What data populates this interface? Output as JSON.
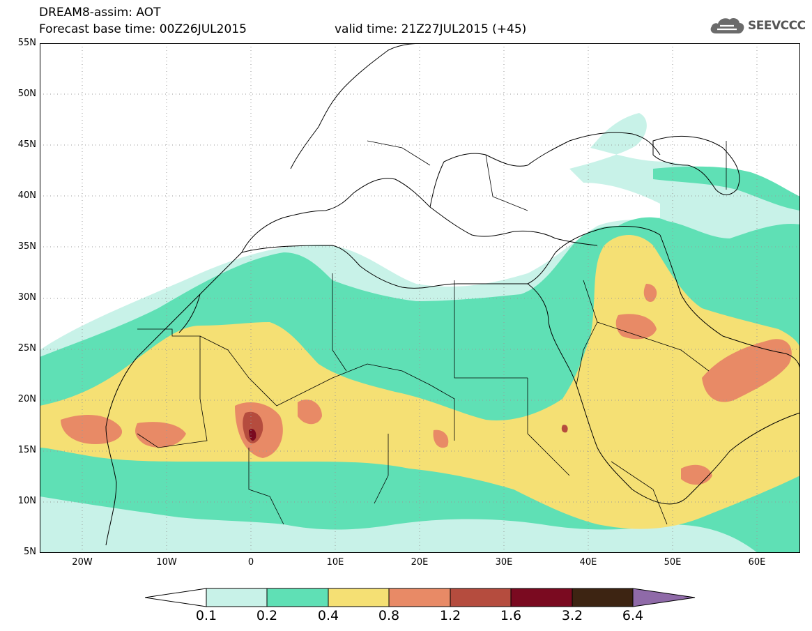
{
  "header": {
    "title": "DREAM8-assim: AOT",
    "base_time": "Forecast base time: 00Z26JUL2015",
    "valid_time": "valid time: 21Z27JUL2015 (+45)",
    "logo_text": "SEEVCCC",
    "logo_icon": "cloud-icon"
  },
  "map": {
    "projection": "lat-lon",
    "lon_range": [
      -25,
      65
    ],
    "lat_range": [
      5,
      55
    ],
    "lat_ticks": [
      {
        "value": 55,
        "label": "55N"
      },
      {
        "value": 50,
        "label": "50N"
      },
      {
        "value": 45,
        "label": "45N"
      },
      {
        "value": 40,
        "label": "40N"
      },
      {
        "value": 35,
        "label": "35N"
      },
      {
        "value": 30,
        "label": "30N"
      },
      {
        "value": 25,
        "label": "25N"
      },
      {
        "value": 20,
        "label": "20N"
      },
      {
        "value": 15,
        "label": "15N"
      },
      {
        "value": 10,
        "label": "10N"
      },
      {
        "value": 5,
        "label": "5N"
      }
    ],
    "lon_ticks": [
      {
        "value": -20,
        "label": "20W"
      },
      {
        "value": -10,
        "label": "10W"
      },
      {
        "value": 0,
        "label": "0"
      },
      {
        "value": 10,
        "label": "10E"
      },
      {
        "value": 20,
        "label": "20E"
      },
      {
        "value": 30,
        "label": "30E"
      },
      {
        "value": 40,
        "label": "40E"
      },
      {
        "value": 50,
        "label": "50E"
      },
      {
        "value": 60,
        "label": "60E"
      }
    ],
    "grid": "dotted"
  },
  "colorbar": {
    "levels": [
      "0.1",
      "0.2",
      "0.4",
      "0.8",
      "1.2",
      "1.6",
      "3.2",
      "6.4"
    ],
    "colors": [
      "#c8f2e8",
      "#5fe0b5",
      "#f5e074",
      "#e88a66",
      "#b54c3e",
      "#7a0a20",
      "#3d2412"
    ],
    "under_color": "#ffffff",
    "over_color": "#8f6aa8"
  }
}
